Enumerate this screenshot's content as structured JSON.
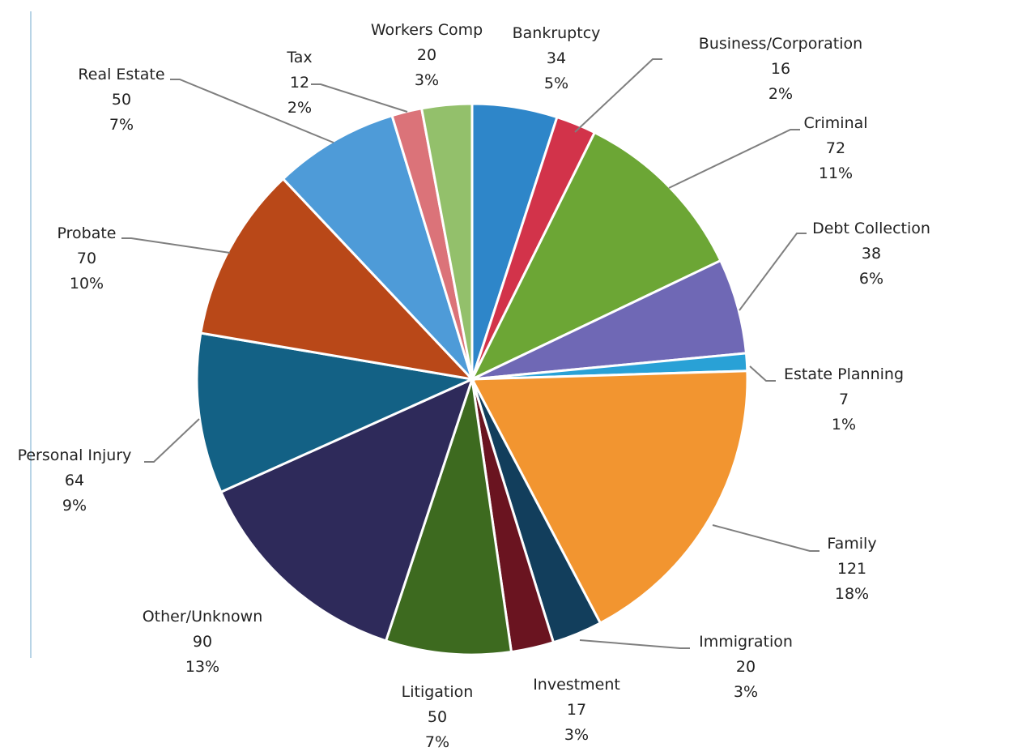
{
  "chart_data": {
    "type": "pie",
    "title": "",
    "start_angle_deg": 0,
    "direction": "clockwise",
    "slices": [
      {
        "label": "Bankruptcy",
        "value": 34,
        "percent": "5%",
        "color": "#2e86c9"
      },
      {
        "label": "Business/Corporation",
        "value": 16,
        "percent": "2%",
        "color": "#d2334a"
      },
      {
        "label": "Criminal",
        "value": 72,
        "percent": "11%",
        "color": "#6ca635"
      },
      {
        "label": "Debt Collection",
        "value": 38,
        "percent": "6%",
        "color": "#6f68b5"
      },
      {
        "label": "Estate Planning",
        "value": 7,
        "percent": "1%",
        "color": "#29a1d6"
      },
      {
        "label": "Family",
        "value": 121,
        "percent": "18%",
        "color": "#f29530"
      },
      {
        "label": "Immigration",
        "value": 20,
        "percent": "3%",
        "color": "#123e5c"
      },
      {
        "label": "Investment",
        "value": 17,
        "percent": "3%",
        "color": "#6a1420"
      },
      {
        "label": "Litigation",
        "value": 50,
        "percent": "7%",
        "color": "#3d6a1f"
      },
      {
        "label": "Other/Unknown",
        "value": 90,
        "percent": "13%",
        "color": "#2e2a5a"
      },
      {
        "label": "Personal Injury",
        "value": 64,
        "percent": "9%",
        "color": "#136185"
      },
      {
        "label": "Probate",
        "value": 70,
        "percent": "10%",
        "color": "#b94818"
      },
      {
        "label": "Real Estate",
        "value": 50,
        "percent": "7%",
        "color": "#4e9bd8"
      },
      {
        "label": "Tax",
        "value": 12,
        "percent": "2%",
        "color": "#db7379"
      },
      {
        "label": "Workers Comp",
        "value": 20,
        "percent": "3%",
        "color": "#93c06b"
      }
    ]
  }
}
